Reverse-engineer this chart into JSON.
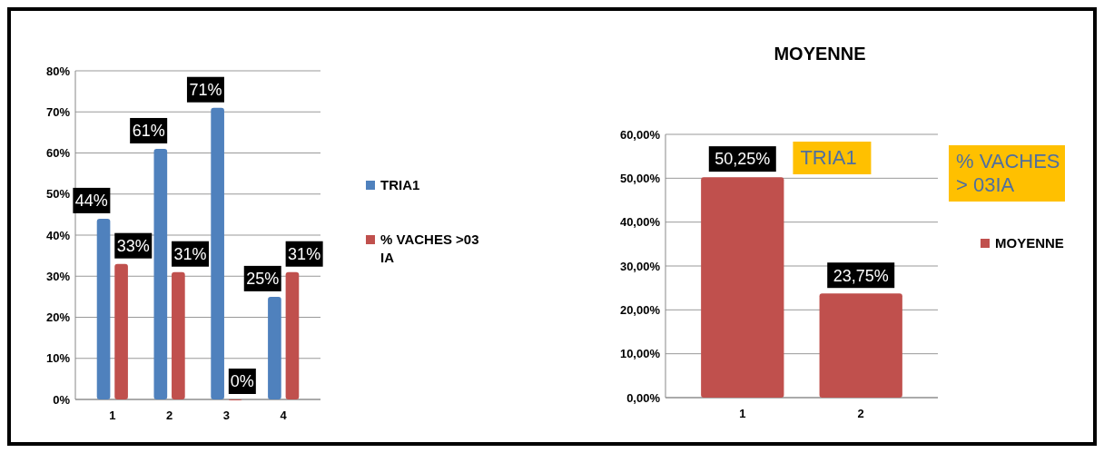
{
  "chart_data": [
    {
      "type": "bar",
      "categories": [
        "1",
        "2",
        "3",
        "4"
      ],
      "series": [
        {
          "name": "TRIA1",
          "color": "#4f81bd",
          "values": [
            44,
            61,
            71,
            25
          ],
          "value_labels": [
            "44%",
            "61%",
            "71%",
            "25%"
          ]
        },
        {
          "name": "% VACHES >03 IA",
          "color": "#c0504d",
          "values": [
            33,
            31,
            0,
            31
          ],
          "value_labels": [
            "33%",
            "31%",
            "0%",
            "31%"
          ]
        }
      ],
      "ylim": [
        0,
        80
      ],
      "yticks": [
        {
          "value": 0,
          "label": "0%"
        },
        {
          "value": 10,
          "label": "10%"
        },
        {
          "value": 20,
          "label": "20%"
        },
        {
          "value": 30,
          "label": "30%"
        },
        {
          "value": 40,
          "label": "40%"
        },
        {
          "value": 50,
          "label": "50%"
        },
        {
          "value": 60,
          "label": "60%"
        },
        {
          "value": 70,
          "label": "70%"
        },
        {
          "value": 80,
          "label": "80%"
        }
      ],
      "grid": "y",
      "legend": "right"
    },
    {
      "type": "bar",
      "title": "MOYENNE",
      "categories": [
        "1",
        "2"
      ],
      "series": [
        {
          "name": "MOYENNE",
          "color": "#c0504d",
          "values": [
            50.25,
            23.75
          ],
          "value_labels": [
            "50,25%",
            "23,75%"
          ]
        }
      ],
      "ylim": [
        0,
        60
      ],
      "yticks": [
        {
          "value": 0,
          "label": "0,00%"
        },
        {
          "value": 10,
          "label": "10,00%"
        },
        {
          "value": 20,
          "label": "20,00%"
        },
        {
          "value": 30,
          "label": "30,00%"
        },
        {
          "value": 40,
          "label": "40,00%"
        },
        {
          "value": 50,
          "label": "50,00%"
        },
        {
          "value": 60,
          "label": "60,00%"
        }
      ],
      "annotations": [
        "TRIA1",
        "% VACHES > 03IA"
      ],
      "grid": "y",
      "legend": "right"
    }
  ]
}
